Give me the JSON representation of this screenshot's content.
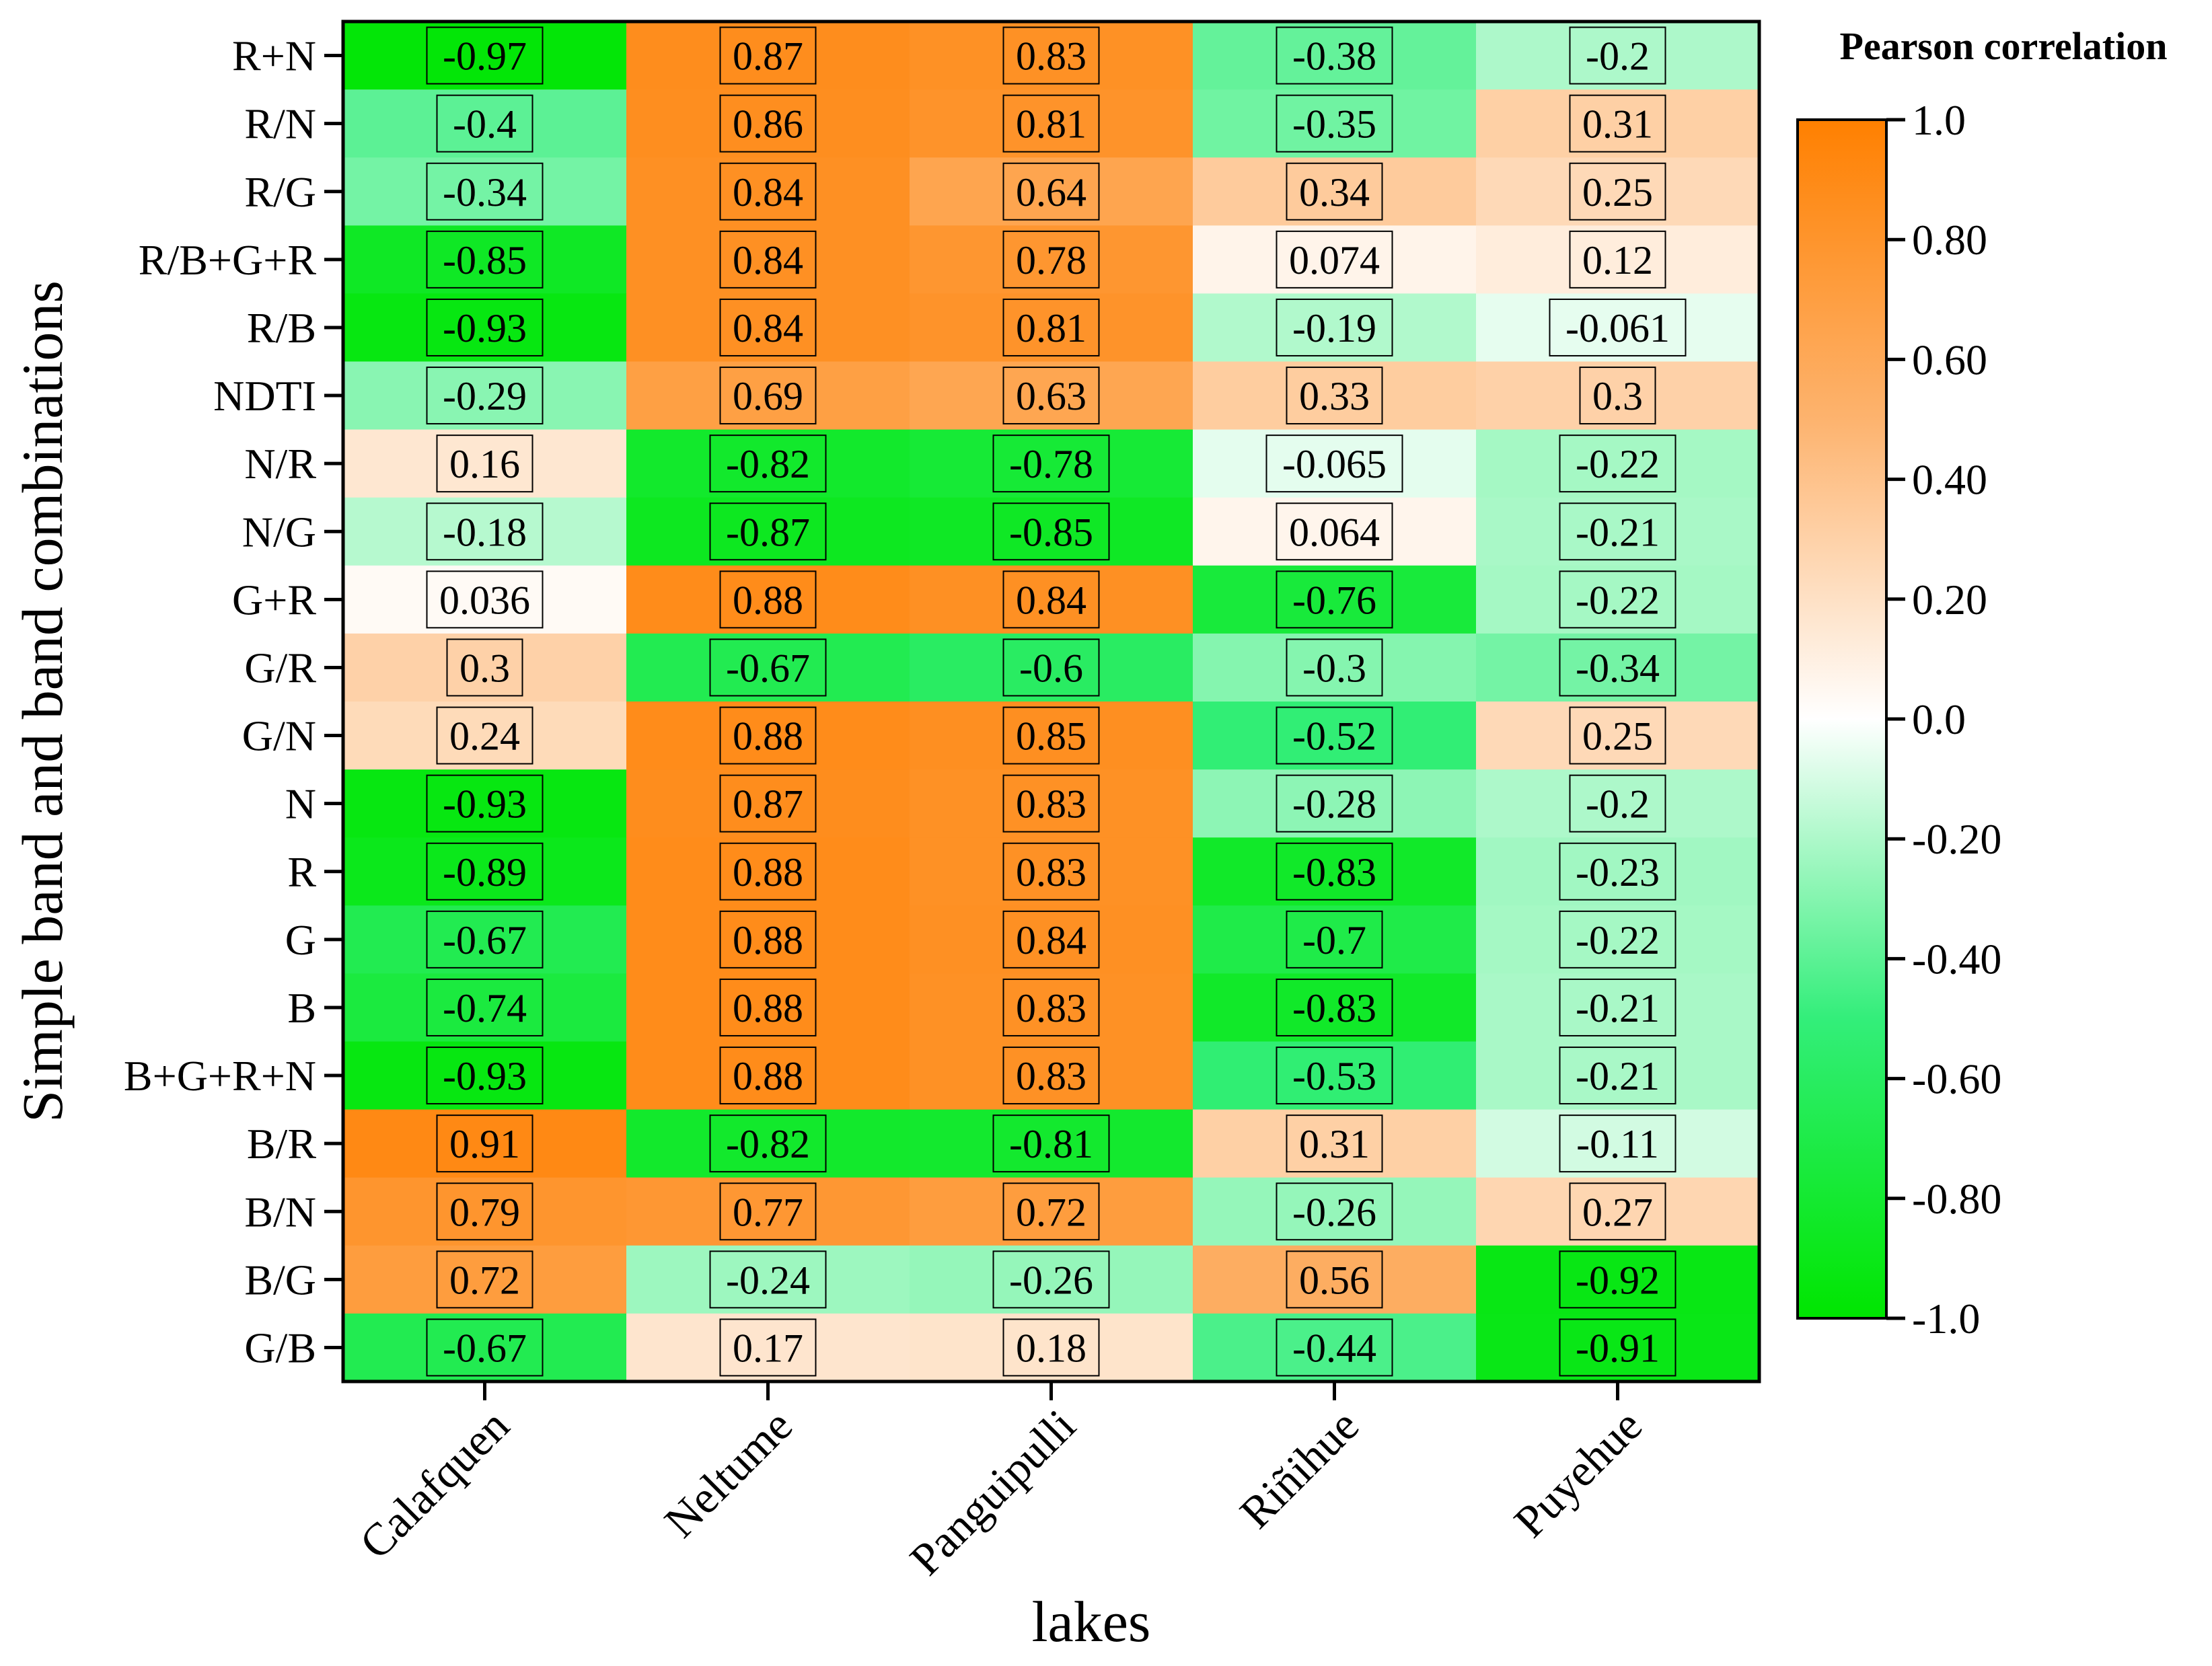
{
  "chart_data": {
    "type": "heatmap",
    "title": "",
    "xlabel": "lakes",
    "ylabel": "Simple band and band combinations",
    "colorbar_title": "Pearson correlation",
    "colorbar_range": [
      -1.0,
      1.0
    ],
    "colorbar_ticks": [
      "1.0",
      "0.80",
      "0.60",
      "0.40",
      "0.20",
      "0.0",
      "-0.20",
      "-0.40",
      "-0.60",
      "-0.80",
      "-1.0"
    ],
    "colormap": [
      {
        "value": -1.0,
        "color": "#00e600"
      },
      {
        "value": -0.5,
        "color": "#33ee7a"
      },
      {
        "value": 0.0,
        "color": "#ffffff"
      },
      {
        "value": 0.5,
        "color": "#fdb36e"
      },
      {
        "value": 1.0,
        "color": "#ff8000"
      }
    ],
    "columns": [
      "Calafquen",
      "Neltume",
      "Panguipulli",
      "Riñihue",
      "Puyehue"
    ],
    "rows": [
      "R+N",
      "R/N",
      "R/G",
      "R/B+G+R",
      "R/B",
      "NDTI",
      "N/R",
      "N/G",
      "G+R",
      "G/R",
      "G/N",
      "N",
      "R",
      "G",
      "B",
      "B+G+R+N",
      "B/R",
      "B/N",
      "B/G",
      "G/B"
    ],
    "values": [
      [
        -0.97,
        0.87,
        0.83,
        -0.38,
        -0.2
      ],
      [
        -0.4,
        0.86,
        0.81,
        -0.35,
        0.31
      ],
      [
        -0.34,
        0.84,
        0.64,
        0.34,
        0.25
      ],
      [
        -0.85,
        0.84,
        0.78,
        0.074,
        0.12
      ],
      [
        -0.93,
        0.84,
        0.81,
        -0.19,
        -0.061
      ],
      [
        -0.29,
        0.69,
        0.63,
        0.33,
        0.3
      ],
      [
        0.16,
        -0.82,
        -0.78,
        -0.065,
        -0.22
      ],
      [
        -0.18,
        -0.87,
        -0.85,
        0.064,
        -0.21
      ],
      [
        0.036,
        0.88,
        0.84,
        -0.76,
        -0.22
      ],
      [
        0.3,
        -0.67,
        -0.6,
        -0.3,
        -0.34
      ],
      [
        0.24,
        0.88,
        0.85,
        -0.52,
        0.25
      ],
      [
        -0.93,
        0.87,
        0.83,
        -0.28,
        -0.2
      ],
      [
        -0.89,
        0.88,
        0.83,
        -0.83,
        -0.23
      ],
      [
        -0.67,
        0.88,
        0.84,
        -0.7,
        -0.22
      ],
      [
        -0.74,
        0.88,
        0.83,
        -0.83,
        -0.21
      ],
      [
        -0.93,
        0.88,
        0.83,
        -0.53,
        -0.21
      ],
      [
        0.91,
        -0.82,
        -0.81,
        0.31,
        -0.11
      ],
      [
        0.79,
        0.77,
        0.72,
        -0.26,
        0.27
      ],
      [
        0.72,
        -0.24,
        -0.26,
        0.56,
        -0.92
      ],
      [
        -0.67,
        0.17,
        0.18,
        -0.44,
        -0.91
      ]
    ],
    "labels": [
      [
        "-0.97",
        "0.87",
        "0.83",
        "-0.38",
        "-0.2"
      ],
      [
        "-0.4",
        "0.86",
        "0.81",
        "-0.35",
        "0.31"
      ],
      [
        "-0.34",
        "0.84",
        "0.64",
        "0.34",
        "0.25"
      ],
      [
        "-0.85",
        "0.84",
        "0.78",
        "0.074",
        "0.12"
      ],
      [
        "-0.93",
        "0.84",
        "0.81",
        "-0.19",
        "-0.061"
      ],
      [
        "-0.29",
        "0.69",
        "0.63",
        "0.33",
        "0.3"
      ],
      [
        "0.16",
        "-0.82",
        "-0.78",
        "-0.065",
        "-0.22"
      ],
      [
        "-0.18",
        "-0.87",
        "-0.85",
        "0.064",
        "-0.21"
      ],
      [
        "0.036",
        "0.88",
        "0.84",
        "-0.76",
        "-0.22"
      ],
      [
        "0.3",
        "-0.67",
        "-0.6",
        "-0.3",
        "-0.34"
      ],
      [
        "0.24",
        "0.88",
        "0.85",
        "-0.52",
        "0.25"
      ],
      [
        "-0.93",
        "0.87",
        "0.83",
        "-0.28",
        "-0.2"
      ],
      [
        "-0.89",
        "0.88",
        "0.83",
        "-0.83",
        "-0.23"
      ],
      [
        "-0.67",
        "0.88",
        "0.84",
        "-0.7",
        "-0.22"
      ],
      [
        "-0.74",
        "0.88",
        "0.83",
        "-0.83",
        "-0.21"
      ],
      [
        "-0.93",
        "0.88",
        "0.83",
        "-0.53",
        "-0.21"
      ],
      [
        "0.91",
        "-0.82",
        "-0.81",
        "0.31",
        "-0.11"
      ],
      [
        "0.79",
        "0.77",
        "0.72",
        "-0.26",
        "0.27"
      ],
      [
        "0.72",
        "-0.24",
        "-0.26",
        "0.56",
        "-0.92"
      ],
      [
        "-0.67",
        "0.17",
        "0.18",
        "-0.44",
        "-0.91"
      ]
    ]
  }
}
